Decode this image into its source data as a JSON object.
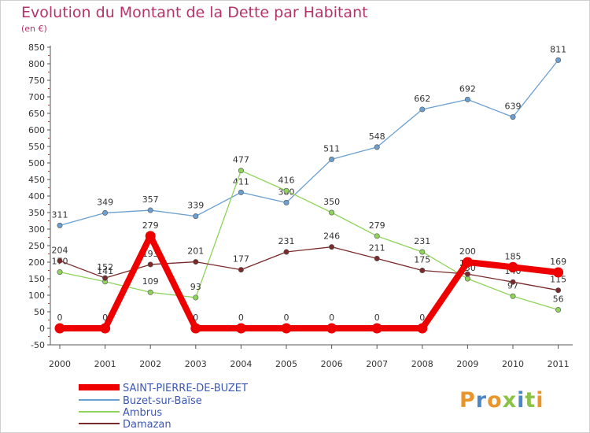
{
  "title": "Evolution du Montant de la Dette par Habitant",
  "subtitle": "(en €)",
  "logo_text": "Proxiti",
  "chart_data": {
    "type": "line",
    "title": "Evolution du Montant de la Dette par Habitant",
    "subtitle": "(en €)",
    "xlabel": "",
    "ylabel": "",
    "x": [
      "2000",
      "2001",
      "2002",
      "2003",
      "2004",
      "2005",
      "2006",
      "2007",
      "2008",
      "2009",
      "2010",
      "2011"
    ],
    "ylim": [
      -50,
      850
    ],
    "yticks": [
      -50,
      0,
      50,
      100,
      150,
      200,
      250,
      300,
      350,
      400,
      450,
      500,
      550,
      600,
      650,
      700,
      750,
      800,
      850
    ],
    "grid": false,
    "legend_position": "bottom-left",
    "series": [
      {
        "name": "SAINT-PIERRE-DE-BUZET",
        "color": "#ee0000",
        "values": [
          0,
          0,
          279,
          0,
          0,
          0,
          0,
          0,
          0,
          200,
          185,
          169
        ],
        "labels": [
          "0",
          "0",
          "279",
          "0",
          "0",
          "0",
          "0",
          "0",
          "0",
          "200",
          "185",
          "169"
        ]
      },
      {
        "name": "Buzet-sur-Baïse",
        "color": "#6b9fd0",
        "values": [
          311,
          349,
          357,
          339,
          411,
          380,
          511,
          548,
          662,
          692,
          639,
          811
        ],
        "labels": [
          "311",
          "349",
          "357",
          "339",
          "411",
          "380",
          "511",
          "548",
          "662",
          "692",
          "639",
          "811"
        ]
      },
      {
        "name": "Ambrus",
        "color": "#8ed35a",
        "values": [
          170,
          141,
          109,
          93,
          477,
          416,
          350,
          279,
          231,
          150,
          97,
          56
        ],
        "labels": [
          "170",
          "141",
          "109",
          "93",
          "477",
          "416",
          "350",
          "279",
          "231",
          "150",
          "97",
          "56"
        ]
      },
      {
        "name": "Damazan",
        "color": "#7a2a2a",
        "values": [
          204,
          152,
          193,
          201,
          177,
          231,
          246,
          211,
          175,
          164,
          140,
          115
        ],
        "labels": [
          "204",
          "152",
          "193",
          "201",
          "177",
          "231",
          "246",
          "211",
          "175",
          "164",
          "140",
          "115"
        ]
      }
    ]
  }
}
